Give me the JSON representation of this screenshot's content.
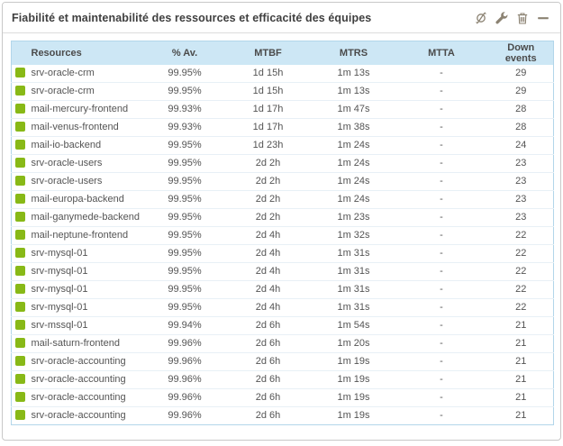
{
  "widget": {
    "title": "Fiabilité et maintenabilité des ressources et efficacité des équipes",
    "toolbar": {
      "refresh_label": "refresh",
      "settings_label": "settings",
      "delete_label": "delete",
      "minimize_label": "minimize"
    }
  },
  "table": {
    "columns": [
      "Resources",
      "% Av.",
      "MTBF",
      "MTRS",
      "MTTA",
      "Down events"
    ],
    "rows": [
      {
        "status": "ok",
        "name": "srv-oracle-crm",
        "av": "99.95%",
        "mtbf": "1d 15h",
        "mtrs": "1m 13s",
        "mtta": "-",
        "down": "29"
      },
      {
        "status": "ok",
        "name": "srv-oracle-crm",
        "av": "99.95%",
        "mtbf": "1d 15h",
        "mtrs": "1m 13s",
        "mtta": "-",
        "down": "29"
      },
      {
        "status": "ok",
        "name": "mail-mercury-frontend",
        "av": "99.93%",
        "mtbf": "1d 17h",
        "mtrs": "1m 47s",
        "mtta": "-",
        "down": "28"
      },
      {
        "status": "ok",
        "name": "mail-venus-frontend",
        "av": "99.93%",
        "mtbf": "1d 17h",
        "mtrs": "1m 38s",
        "mtta": "-",
        "down": "28"
      },
      {
        "status": "ok",
        "name": "mail-io-backend",
        "av": "99.95%",
        "mtbf": "1d 23h",
        "mtrs": "1m 24s",
        "mtta": "-",
        "down": "24"
      },
      {
        "status": "ok",
        "name": "srv-oracle-users",
        "av": "99.95%",
        "mtbf": "2d 2h",
        "mtrs": "1m 24s",
        "mtta": "-",
        "down": "23"
      },
      {
        "status": "ok",
        "name": "srv-oracle-users",
        "av": "99.95%",
        "mtbf": "2d 2h",
        "mtrs": "1m 24s",
        "mtta": "-",
        "down": "23"
      },
      {
        "status": "ok",
        "name": "mail-europa-backend",
        "av": "99.95%",
        "mtbf": "2d 2h",
        "mtrs": "1m 24s",
        "mtta": "-",
        "down": "23"
      },
      {
        "status": "ok",
        "name": "mail-ganymede-backend",
        "av": "99.95%",
        "mtbf": "2d 2h",
        "mtrs": "1m 23s",
        "mtta": "-",
        "down": "23"
      },
      {
        "status": "ok",
        "name": "mail-neptune-frontend",
        "av": "99.95%",
        "mtbf": "2d 4h",
        "mtrs": "1m 32s",
        "mtta": "-",
        "down": "22"
      },
      {
        "status": "ok",
        "name": "srv-mysql-01",
        "av": "99.95%",
        "mtbf": "2d 4h",
        "mtrs": "1m 31s",
        "mtta": "-",
        "down": "22"
      },
      {
        "status": "ok",
        "name": "srv-mysql-01",
        "av": "99.95%",
        "mtbf": "2d 4h",
        "mtrs": "1m 31s",
        "mtta": "-",
        "down": "22"
      },
      {
        "status": "ok",
        "name": "srv-mysql-01",
        "av": "99.95%",
        "mtbf": "2d 4h",
        "mtrs": "1m 31s",
        "mtta": "-",
        "down": "22"
      },
      {
        "status": "ok",
        "name": "srv-mysql-01",
        "av": "99.95%",
        "mtbf": "2d 4h",
        "mtrs": "1m 31s",
        "mtta": "-",
        "down": "22"
      },
      {
        "status": "ok",
        "name": "srv-mssql-01",
        "av": "99.94%",
        "mtbf": "2d 6h",
        "mtrs": "1m 54s",
        "mtta": "-",
        "down": "21"
      },
      {
        "status": "ok",
        "name": "mail-saturn-frontend",
        "av": "99.96%",
        "mtbf": "2d 6h",
        "mtrs": "1m 20s",
        "mtta": "-",
        "down": "21"
      },
      {
        "status": "ok",
        "name": "srv-oracle-accounting",
        "av": "99.96%",
        "mtbf": "2d 6h",
        "mtrs": "1m 19s",
        "mtta": "-",
        "down": "21"
      },
      {
        "status": "ok",
        "name": "srv-oracle-accounting",
        "av": "99.96%",
        "mtbf": "2d 6h",
        "mtrs": "1m 19s",
        "mtta": "-",
        "down": "21"
      },
      {
        "status": "ok",
        "name": "srv-oracle-accounting",
        "av": "99.96%",
        "mtbf": "2d 6h",
        "mtrs": "1m 19s",
        "mtta": "-",
        "down": "21"
      },
      {
        "status": "ok",
        "name": "srv-oracle-accounting",
        "av": "99.96%",
        "mtbf": "2d 6h",
        "mtrs": "1m 19s",
        "mtta": "-",
        "down": "21"
      }
    ]
  },
  "colors": {
    "status_ok": "#88b917",
    "header_bg": "#cde7f5",
    "table_border": "#b2d6ea",
    "icon_color": "#8b8272",
    "title_color": "#3f3f3f"
  }
}
